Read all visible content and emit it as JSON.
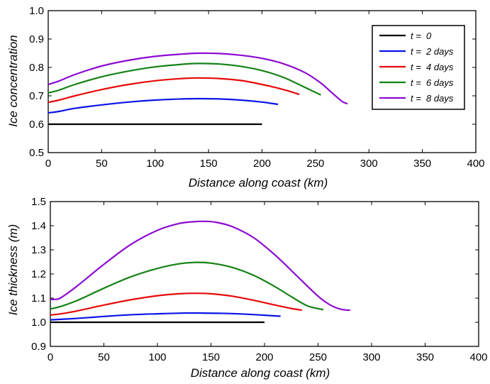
{
  "chart_data": [
    {
      "type": "line",
      "xlabel": "Distance along coast (km)",
      "ylabel": "Ice concentration",
      "xlim": [
        0,
        400
      ],
      "ylim": [
        0.5,
        1.0
      ],
      "xticks": [
        "0",
        "50",
        "100",
        "150",
        "200",
        "250",
        "300",
        "350",
        "400"
      ],
      "yticks": [
        "0.5",
        "0.6",
        "0.7",
        "0.8",
        "0.9",
        "1.0"
      ],
      "grid": false,
      "legend_position": "top-right",
      "series": [
        {
          "name": "t =  0",
          "color": "#000000",
          "x": [
            0,
            50,
            100,
            150,
            200
          ],
          "y": [
            0.6,
            0.6,
            0.6,
            0.6,
            0.6
          ]
        },
        {
          "name": "t =  2 days",
          "color": "#0a14e6",
          "x": [
            0,
            10,
            25,
            50,
            75,
            100,
            125,
            140,
            160,
            180,
            200,
            215
          ],
          "y": [
            0.64,
            0.645,
            0.656,
            0.668,
            0.678,
            0.685,
            0.689,
            0.69,
            0.689,
            0.685,
            0.678,
            0.67
          ]
        },
        {
          "name": "t =  4 days",
          "color": "#e60a0a",
          "x": [
            0,
            10,
            25,
            50,
            75,
            100,
            125,
            140,
            160,
            180,
            200,
            220,
            235
          ],
          "y": [
            0.677,
            0.685,
            0.7,
            0.722,
            0.74,
            0.753,
            0.761,
            0.763,
            0.761,
            0.754,
            0.74,
            0.722,
            0.705
          ]
        },
        {
          "name": "t =  6 days",
          "color": "#148214",
          "x": [
            0,
            10,
            25,
            50,
            75,
            100,
            125,
            140,
            160,
            180,
            200,
            220,
            240,
            255
          ],
          "y": [
            0.71,
            0.72,
            0.74,
            0.767,
            0.787,
            0.802,
            0.811,
            0.814,
            0.812,
            0.804,
            0.789,
            0.765,
            0.73,
            0.703
          ]
        },
        {
          "name": "t =  8 days",
          "color": "#8c0ad2",
          "x": [
            0,
            10,
            25,
            50,
            75,
            100,
            125,
            140,
            160,
            180,
            200,
            220,
            240,
            255,
            265,
            275,
            280
          ],
          "y": [
            0.74,
            0.752,
            0.775,
            0.805,
            0.825,
            0.839,
            0.847,
            0.85,
            0.849,
            0.843,
            0.832,
            0.813,
            0.782,
            0.745,
            0.712,
            0.68,
            0.672
          ]
        }
      ]
    },
    {
      "type": "line",
      "xlabel": "Distance along coast (km)",
      "ylabel": "Ice thickness (m)",
      "xlim": [
        0,
        400
      ],
      "ylim": [
        0.9,
        1.5
      ],
      "xticks": [
        "0",
        "50",
        "100",
        "150",
        "200",
        "250",
        "300",
        "350",
        "400"
      ],
      "yticks": [
        "0.9",
        "1.0",
        "1.1",
        "1.2",
        "1.3",
        "1.4",
        "1.5"
      ],
      "grid": false,
      "series": [
        {
          "color": "#000000",
          "x": [
            0,
            50,
            100,
            150,
            200
          ],
          "y": [
            1.0,
            1.0,
            1.0,
            1.0,
            1.0
          ]
        },
        {
          "color": "#0a14e6",
          "x": [
            0,
            25,
            50,
            75,
            100,
            125,
            140,
            160,
            180,
            200,
            215
          ],
          "y": [
            1.01,
            1.016,
            1.024,
            1.031,
            1.035,
            1.038,
            1.038,
            1.037,
            1.034,
            1.029,
            1.025
          ]
        },
        {
          "color": "#e60a0a",
          "x": [
            0,
            10,
            25,
            50,
            75,
            100,
            120,
            135,
            150,
            170,
            190,
            210,
            225,
            235
          ],
          "y": [
            1.03,
            1.035,
            1.047,
            1.071,
            1.093,
            1.11,
            1.118,
            1.12,
            1.118,
            1.108,
            1.091,
            1.071,
            1.057,
            1.05
          ]
        },
        {
          "color": "#148214",
          "x": [
            0,
            10,
            25,
            50,
            75,
            100,
            120,
            135,
            150,
            170,
            190,
            210,
            225,
            240,
            255
          ],
          "y": [
            1.055,
            1.066,
            1.09,
            1.141,
            1.188,
            1.223,
            1.242,
            1.248,
            1.245,
            1.227,
            1.194,
            1.147,
            1.106,
            1.068,
            1.052
          ]
        },
        {
          "color": "#8c0ad2",
          "x": [
            0,
            5,
            10,
            25,
            50,
            75,
            100,
            120,
            135,
            145,
            155,
            170,
            190,
            210,
            230,
            250,
            262,
            272,
            280
          ],
          "y": [
            1.095,
            1.095,
            1.102,
            1.15,
            1.24,
            1.322,
            1.381,
            1.409,
            1.417,
            1.418,
            1.414,
            1.396,
            1.35,
            1.278,
            1.193,
            1.108,
            1.07,
            1.053,
            1.05
          ]
        }
      ]
    }
  ]
}
